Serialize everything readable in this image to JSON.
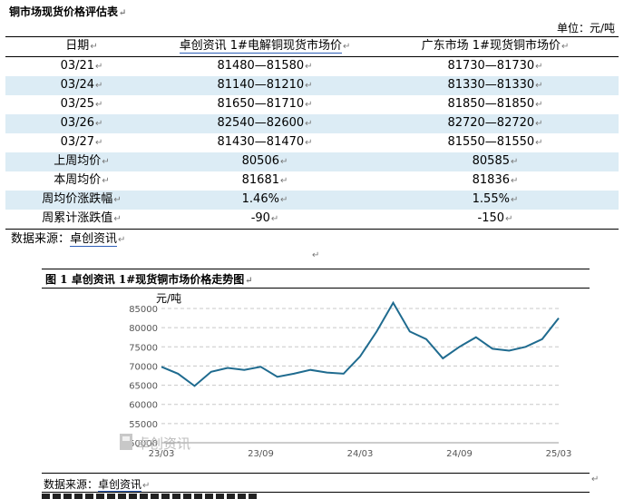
{
  "doc": {
    "title": "铜市场现货价格评估表",
    "unit_label": "单位：元/吨",
    "para_mark": "↵",
    "trailing_mark": "↵"
  },
  "table": {
    "headers": [
      "日期",
      "卓创资讯 1#电解铜现货市场价",
      "广东市场 1#现货铜市场价"
    ],
    "rows": [
      {
        "date": "03/21",
        "a": "81480—81580",
        "b": "81730—81730"
      },
      {
        "date": "03/24",
        "a": "81140—81210",
        "b": "81330—81330"
      },
      {
        "date": "03/25",
        "a": "81650—81710",
        "b": "81850—81850"
      },
      {
        "date": "03/26",
        "a": "82540—82600",
        "b": "82720—82720"
      },
      {
        "date": "03/27",
        "a": "81430—81470",
        "b": "81550—81550"
      }
    ],
    "summary": [
      {
        "label": "上周均价",
        "a": "80506",
        "b": "80585"
      },
      {
        "label": "本周均价",
        "a": "81681",
        "b": "81836"
      },
      {
        "label": "周均价涨跌幅",
        "a": "1.46%",
        "b": "1.55%"
      },
      {
        "label": "周累计涨跌值",
        "a": "-90",
        "b": "-150"
      }
    ]
  },
  "source1": {
    "label": "数据来源：",
    "name": "卓创资讯"
  },
  "figure": {
    "title": "图 1  卓创资讯 1#现货铜市场价格走势图",
    "source_label": "数据来源：",
    "source_name": "卓创资讯",
    "watermark": "卓创资讯"
  },
  "chart_data": {
    "type": "line",
    "ylabel": "元/吨",
    "ylim": [
      50000,
      85000
    ],
    "yticks": [
      50000,
      55000,
      60000,
      65000,
      70000,
      75000,
      80000,
      85000
    ],
    "xticks": [
      "23/03",
      "23/09",
      "24/03",
      "24/09",
      "25/03"
    ],
    "grid": "horizontal dashed",
    "line_color": "#1f6b8f",
    "series": [
      {
        "x": [
          "23/03",
          "23/04",
          "23/05",
          "23/06",
          "23/07",
          "23/08",
          "23/09",
          "23/10",
          "23/11",
          "23/12",
          "24/01",
          "24/02",
          "24/03",
          "24/04",
          "24/05",
          "24/06",
          "24/07",
          "24/08",
          "24/09",
          "24/10",
          "24/11",
          "24/12",
          "25/01",
          "25/02",
          "25/03"
        ],
        "values": [
          69800,
          68000,
          64800,
          68500,
          69500,
          69000,
          69800,
          67200,
          68000,
          69000,
          68300,
          68000,
          72500,
          79000,
          86500,
          79000,
          77000,
          72000,
          75000,
          77500,
          74500,
          74000,
          75000,
          77000,
          82500
        ]
      }
    ]
  }
}
